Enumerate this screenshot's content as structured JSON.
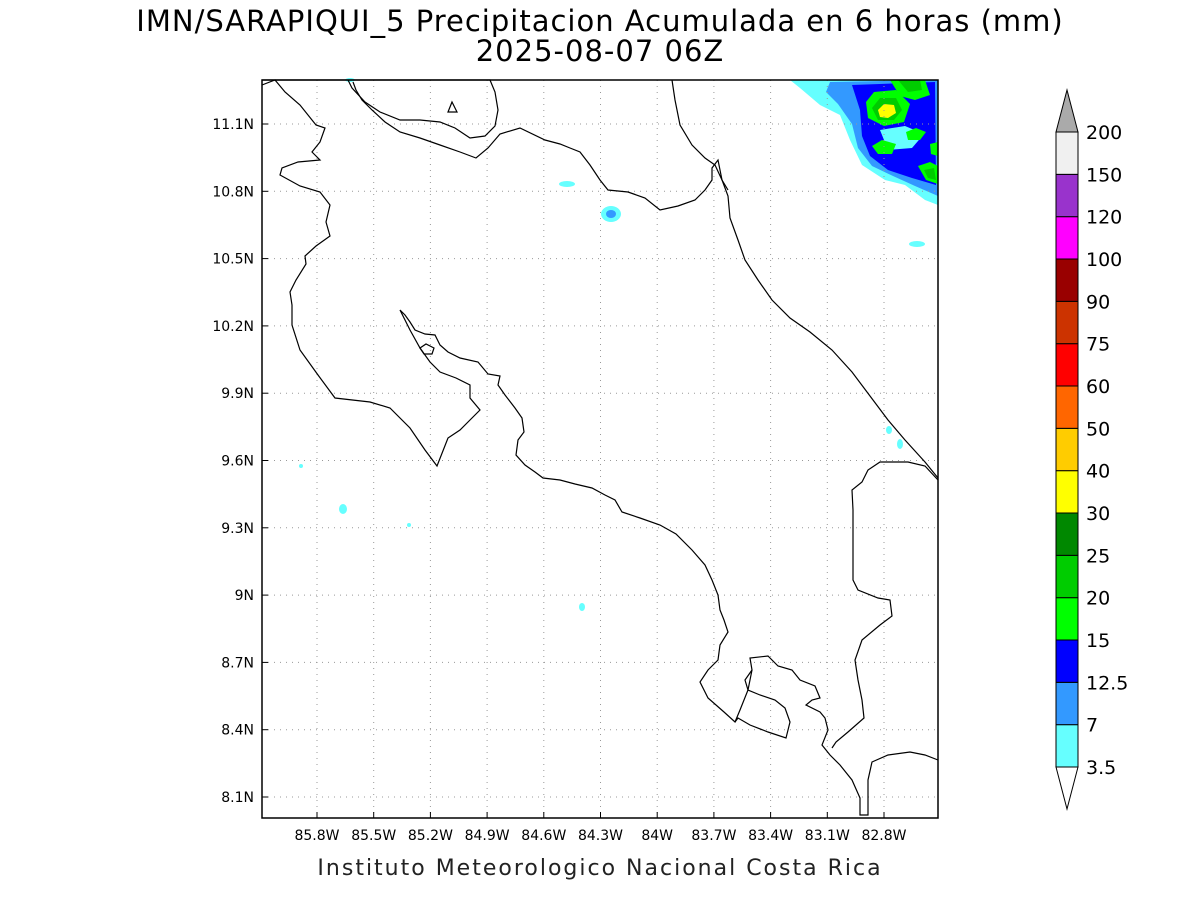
{
  "title_line1": "IMN/SARAPIQUI_5 Precipitacion Acumulada en 6 horas (mm)",
  "title_line2": "2025-08-07 06Z",
  "footer": "Instituto Meteorologico Nacional Costa Rica",
  "map": {
    "lon_range": [
      -86.0,
      -82.5
    ],
    "lat_range": [
      8.0,
      11.3
    ],
    "lon_ticks": [
      {
        "v": -85.8,
        "label": "85.8W"
      },
      {
        "v": -85.5,
        "label": "85.5W"
      },
      {
        "v": -85.2,
        "label": "85.2W"
      },
      {
        "v": -84.9,
        "label": "84.9W"
      },
      {
        "v": -84.6,
        "label": "84.6W"
      },
      {
        "v": -84.3,
        "label": "84.3W"
      },
      {
        "v": -84.0,
        "label": "84W"
      },
      {
        "v": -83.7,
        "label": "83.7W"
      },
      {
        "v": -83.4,
        "label": "83.4W"
      },
      {
        "v": -83.1,
        "label": "83.1W"
      },
      {
        "v": -82.8,
        "label": "82.8W"
      }
    ],
    "lat_ticks": [
      {
        "v": 8.1,
        "label": "8.1N"
      },
      {
        "v": 8.4,
        "label": "8.4N"
      },
      {
        "v": 8.7,
        "label": "8.7N"
      },
      {
        "v": 9.0,
        "label": "9N"
      },
      {
        "v": 9.3,
        "label": "9.3N"
      },
      {
        "v": 9.6,
        "label": "9.6N"
      },
      {
        "v": 9.9,
        "label": "9.9N"
      },
      {
        "v": 10.2,
        "label": "10.2N"
      },
      {
        "v": 10.5,
        "label": "10.5N"
      },
      {
        "v": 10.8,
        "label": "10.8N"
      },
      {
        "v": 11.1,
        "label": "11.1N"
      }
    ],
    "gridlines": "dotted"
  },
  "legend": {
    "levels": [
      {
        "label": "3.5",
        "color": "#66ffff"
      },
      {
        "label": "7",
        "color": "#3399ff"
      },
      {
        "label": "12.5",
        "color": "#0000ff"
      },
      {
        "label": "15",
        "color": "#00ff00"
      },
      {
        "label": "20",
        "color": "#00cc00"
      },
      {
        "label": "25",
        "color": "#008800"
      },
      {
        "label": "30",
        "color": "#ffff00"
      },
      {
        "label": "40",
        "color": "#ffcc00"
      },
      {
        "label": "50",
        "color": "#ff6600"
      },
      {
        "label": "60",
        "color": "#ff0000"
      },
      {
        "label": "75",
        "color": "#cc3300"
      },
      {
        "label": "90",
        "color": "#990000"
      },
      {
        "label": "100",
        "color": "#ff00ff"
      },
      {
        "label": "120",
        "color": "#9933cc"
      },
      {
        "label": "150",
        "color": "#f0f0f0"
      },
      {
        "label": "200",
        "color": "#999999"
      }
    ],
    "top_triangle_color": "#aaaaaa",
    "bottom_triangle_color": "#ffffff"
  }
}
